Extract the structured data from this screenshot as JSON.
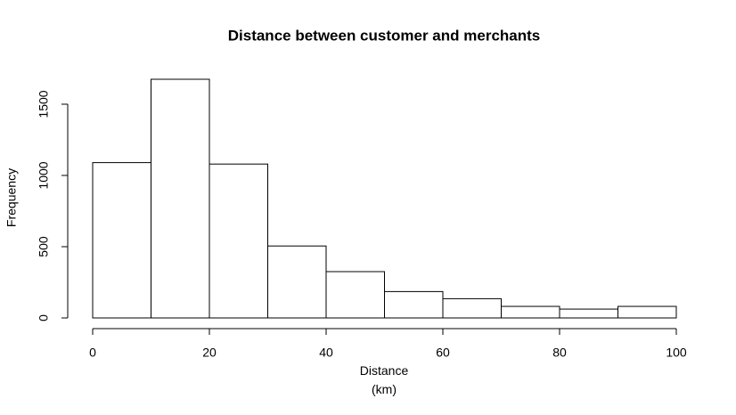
{
  "chart_data": {
    "type": "histogram",
    "title": "Distance between customer and merchants",
    "xlabel": "Distance\n(km)",
    "ylabel": "Frequency",
    "bins": [
      0,
      10,
      20,
      30,
      40,
      50,
      60,
      70,
      80,
      90,
      100
    ],
    "values": [
      1090,
      1675,
      1080,
      505,
      325,
      185,
      135,
      81,
      62,
      81
    ],
    "color": "#ffffff",
    "edgecolor": "#000000",
    "xlim": [
      0,
      100
    ],
    "xticks": [
      0,
      20,
      40,
      60,
      80,
      100
    ],
    "ylim": [
      0,
      1675
    ],
    "yticks": [
      0,
      500,
      1000,
      1500
    ]
  }
}
